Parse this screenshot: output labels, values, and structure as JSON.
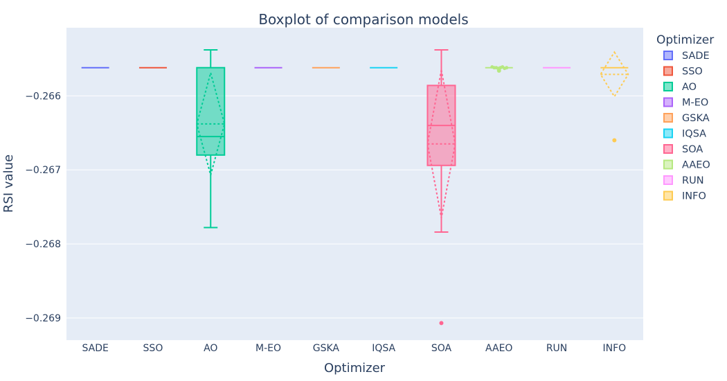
{
  "chart_data": {
    "type": "box",
    "title": "Boxplot of comparison models",
    "xlabel": "Optimizer",
    "ylabel": "RSI value",
    "legend_title": "Optimizer",
    "legend_position": "right",
    "grid": true,
    "ylim": [
      -0.2693,
      -0.26508
    ],
    "yticks": [
      -0.266,
      -0.267,
      -0.268,
      -0.269
    ],
    "ytick_labels": [
      "−0.266",
      "−0.267",
      "−0.268",
      "−0.269"
    ],
    "plot_background": "#e5ecf6",
    "series": [
      {
        "name": "SADE",
        "color": "#636efa",
        "q1": -0.26562,
        "median": -0.26562,
        "q3": -0.26562,
        "lowerfence": -0.26562,
        "upperfence": -0.26562,
        "mean": null,
        "sd": null,
        "outliers": [],
        "points": []
      },
      {
        "name": "SSO",
        "color": "#ef553b",
        "q1": -0.26562,
        "median": -0.26562,
        "q3": -0.26562,
        "lowerfence": -0.26562,
        "upperfence": -0.26562,
        "mean": null,
        "sd": null,
        "outliers": [],
        "points": []
      },
      {
        "name": "AO",
        "color": "#00cc96",
        "q1": -0.2668,
        "median": -0.26655,
        "q3": -0.26562,
        "lowerfence": -0.26778,
        "upperfence": -0.26538,
        "mean": -0.26638,
        "sd": 0.00069,
        "outliers": [],
        "points": []
      },
      {
        "name": "M-EO",
        "color": "#ab63fa",
        "q1": -0.26562,
        "median": -0.26562,
        "q3": -0.26562,
        "lowerfence": -0.26562,
        "upperfence": -0.26562,
        "mean": null,
        "sd": null,
        "outliers": [],
        "points": []
      },
      {
        "name": "GSKA",
        "color": "#ffa15a",
        "q1": -0.26562,
        "median": -0.26562,
        "q3": -0.26562,
        "lowerfence": -0.26562,
        "upperfence": -0.26562,
        "mean": null,
        "sd": null,
        "outliers": [],
        "points": []
      },
      {
        "name": "IQSA",
        "color": "#19d3f3",
        "q1": -0.26562,
        "median": -0.26562,
        "q3": -0.26562,
        "lowerfence": -0.26562,
        "upperfence": -0.26562,
        "mean": null,
        "sd": null,
        "outliers": [],
        "points": []
      },
      {
        "name": "SOA",
        "color": "#ff6692",
        "q1": -0.26694,
        "median": -0.2664,
        "q3": -0.26586,
        "lowerfence": -0.26784,
        "upperfence": -0.26538,
        "mean": -0.26665,
        "sd": 0.001,
        "outliers": [
          -0.26907
        ],
        "points": []
      },
      {
        "name": "AAEO",
        "color": "#b6e880",
        "q1": -0.26562,
        "median": -0.26562,
        "q3": -0.26562,
        "lowerfence": -0.26562,
        "upperfence": -0.26562,
        "mean": null,
        "sd": null,
        "outliers": [
          -0.26566
        ],
        "points": [
          -0.26561,
          -0.26562,
          -0.26562,
          -0.26563,
          -0.26562,
          -0.26561,
          -0.26563,
          -0.26562
        ]
      },
      {
        "name": "RUN",
        "color": "#ff97ff",
        "q1": -0.26562,
        "median": -0.26562,
        "q3": -0.26562,
        "lowerfence": -0.26562,
        "upperfence": -0.26562,
        "mean": null,
        "sd": null,
        "outliers": [],
        "points": []
      },
      {
        "name": "INFO",
        "color": "#fecb52",
        "q1": -0.26562,
        "median": -0.26562,
        "q3": -0.26562,
        "lowerfence": -0.26562,
        "upperfence": -0.26562,
        "mean": -0.26571,
        "sd": 0.0003,
        "outliers": [
          -0.2666
        ],
        "points": []
      }
    ]
  }
}
